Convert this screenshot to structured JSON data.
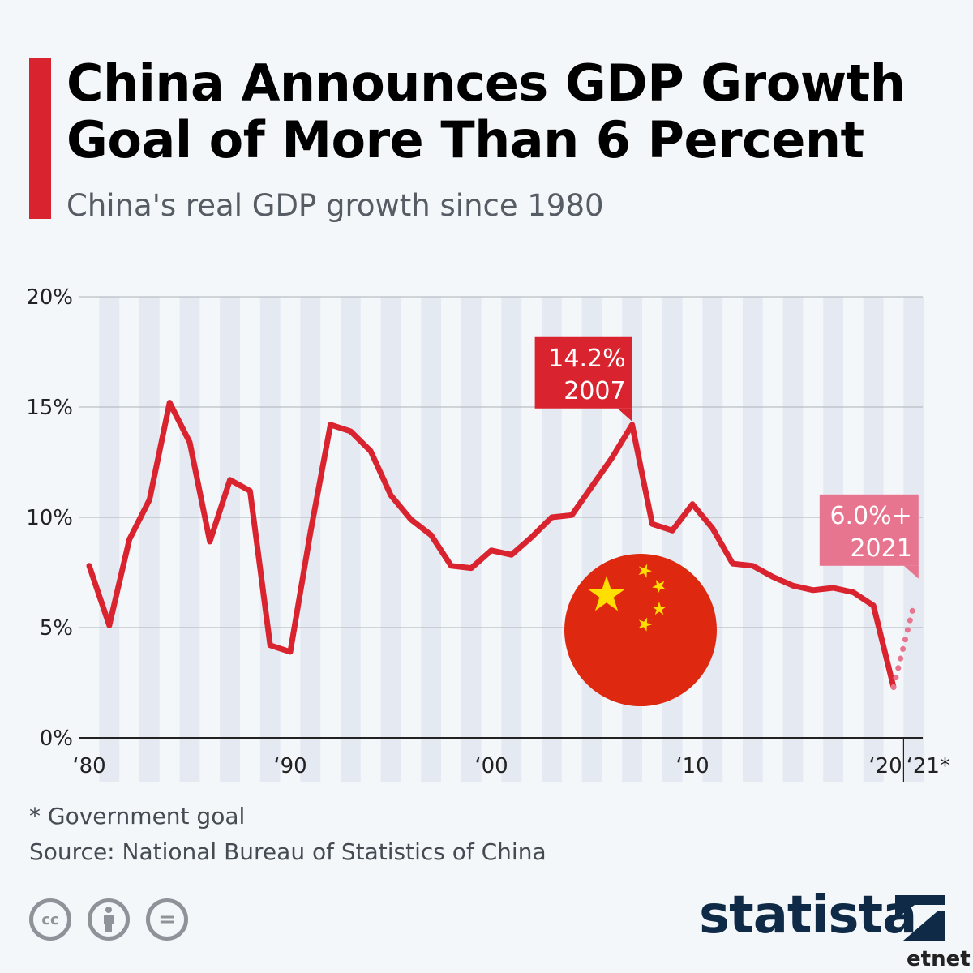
{
  "header": {
    "title_line1": "China Announces GDP Growth",
    "title_line2": "Goal of More Than 6 Percent",
    "subtitle": "China's real GDP growth since 1980"
  },
  "colors": {
    "accent": "#d9232e",
    "line": "#d9232e",
    "goal": "#e8758f",
    "flag_red": "#de2910",
    "flag_star": "#ffde00",
    "stripe": "#e4e9f2",
    "brand": "#0f2a46"
  },
  "chart_data": {
    "type": "line",
    "ylim": [
      0,
      20
    ],
    "yticks": [
      0,
      5,
      10,
      15,
      20
    ],
    "ytick_labels": [
      "0%",
      "5%",
      "10%",
      "15%",
      "20%"
    ],
    "xlim": [
      1980,
      2021
    ],
    "xticks": [
      1980,
      1990,
      2000,
      2010,
      2020,
      2021
    ],
    "xtick_labels": [
      "‘80",
      "‘90",
      "‘00",
      "‘10",
      "‘20",
      "‘21*"
    ],
    "grid": true,
    "series": [
      {
        "values": [
          [
            1980,
            7.8
          ],
          [
            1981,
            5.1
          ],
          [
            1982,
            9.0
          ],
          [
            1983,
            10.8
          ],
          [
            1984,
            15.2
          ],
          [
            1985,
            13.4
          ],
          [
            1986,
            8.9
          ],
          [
            1987,
            11.7
          ],
          [
            1988,
            11.2
          ],
          [
            1989,
            4.2
          ],
          [
            1990,
            3.9
          ],
          [
            1991,
            9.3
          ],
          [
            1992,
            14.2
          ],
          [
            1993,
            13.9
          ],
          [
            1994,
            13.0
          ],
          [
            1995,
            11.0
          ],
          [
            1996,
            9.9
          ],
          [
            1997,
            9.2
          ],
          [
            1998,
            7.8
          ],
          [
            1999,
            7.7
          ],
          [
            2000,
            8.5
          ],
          [
            2001,
            8.3
          ],
          [
            2002,
            9.1
          ],
          [
            2003,
            10.0
          ],
          [
            2004,
            10.1
          ],
          [
            2005,
            11.4
          ],
          [
            2006,
            12.7
          ],
          [
            2007,
            14.2
          ],
          [
            2008,
            9.7
          ],
          [
            2009,
            9.4
          ],
          [
            2010,
            10.6
          ],
          [
            2011,
            9.5
          ],
          [
            2012,
            7.9
          ],
          [
            2013,
            7.8
          ],
          [
            2014,
            7.3
          ],
          [
            2015,
            6.9
          ],
          [
            2016,
            6.7
          ],
          [
            2017,
            6.8
          ],
          [
            2018,
            6.6
          ],
          [
            2019,
            6.0
          ],
          [
            2020,
            2.3
          ]
        ]
      },
      {
        "dashed": true,
        "values": [
          [
            2020,
            2.3
          ],
          [
            2021,
            6.0
          ]
        ]
      }
    ],
    "annotations": [
      {
        "line1": "14.2%",
        "line2": "2007",
        "x": 2007,
        "y": 14.2
      },
      {
        "line1": "6.0%+",
        "line2": "2021",
        "x": 2021,
        "y": 6.0
      }
    ]
  },
  "footnotes": {
    "goal_note": "* Government goal",
    "source": "Source: National Bureau of Statistics of China"
  },
  "footer": {
    "license_icons": [
      "cc-icon",
      "by-icon",
      "nd-icon"
    ],
    "cc_label": "cc",
    "nd_label": "=",
    "brand": "statista",
    "watermark": "etnet"
  }
}
